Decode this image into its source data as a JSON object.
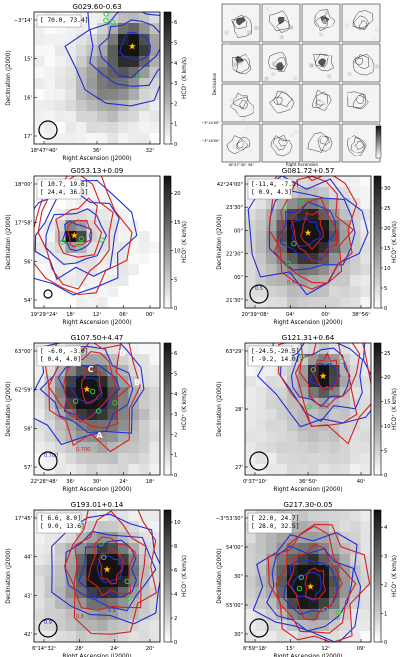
{
  "figure": {
    "x_axis_label": "Right Ascension (J2000)",
    "y_axis_label": "Declination (J2000)",
    "colorbar_label": "HCO⁺ (K km/s)",
    "inset_x_label": "Right Ascension",
    "inset_y_label": "Declination",
    "inset_y_ticks": [
      "−3°14'00\"",
      "−3°16'00\""
    ],
    "inset_x_ticks": "18ʰ47ᵐ40ˢ   36ˢ"
  },
  "chart_data": [
    {
      "type": "heatmap",
      "title": "G029.60-0.63",
      "legend_box": [
        "[ 70.0, 73.4]"
      ],
      "xticks": [
        "18ʰ47ᵐ40ˢ",
        "36ˢ",
        "32ˢ"
      ],
      "yticks": [
        "−3°14'",
        "15'",
        "16'",
        "17'"
      ],
      "colorbar_ticks": [
        0,
        1,
        2,
        3,
        4,
        5,
        6
      ],
      "colorbar_range": [
        0,
        6.5
      ],
      "contour_labels": [],
      "source_labels": []
    },
    {
      "type": "heatmap",
      "title": "G053.13+0.09",
      "legend_box": [
        "[ 10.7, 19.6]",
        "[ 24.4, 36.1]"
      ],
      "xticks": [
        "19ʰ29ᵐ24ˢ",
        "18ˢ",
        "12ˢ",
        "06ˢ",
        "00ˢ"
      ],
      "yticks": [
        "18°00'",
        "17°58'",
        "56'",
        "54'"
      ],
      "colorbar_ticks": [
        0,
        5,
        10,
        15,
        20
      ],
      "colorbar_range": [
        0,
        23
      ],
      "contour_labels": [],
      "source_labels": []
    },
    {
      "type": "heatmap",
      "title": "G081.72+0.57",
      "legend_box": [
        "[-11.4, -7.1]",
        "[ 0.9, 4.3]"
      ],
      "xticks": [
        "20ʰ39ᵐ08ˢ",
        "04ˢ",
        "00ˢ",
        "38ᵐ56ˢ"
      ],
      "yticks": [
        "42°24'00\"",
        "23'30\"",
        "00\"",
        "22'30\"",
        "00\"",
        "21'30\""
      ],
      "colorbar_ticks": [
        0,
        5,
        10,
        15,
        20,
        25,
        30
      ],
      "colorbar_range": [
        0,
        33
      ],
      "contour_labels": [
        "0.5",
        "0.5"
      ],
      "source_labels": []
    },
    {
      "type": "heatmap",
      "title": "G107.50+4.47",
      "legend_box": [
        "[ -6.0, -3.0]",
        "[ 0.4, 4.0]"
      ],
      "xticks": [
        "22ʰ28ᵐ48ˢ",
        "36ˢ",
        "30ˢ",
        "24ˢ",
        "18ˢ"
      ],
      "yticks": [
        "63°00'",
        "62°59'",
        "58'",
        "57'"
      ],
      "colorbar_ticks": [
        0,
        1,
        2,
        3,
        4,
        5,
        6
      ],
      "colorbar_range": [
        0,
        6.5
      ],
      "contour_labels": [
        "0.700",
        "0.700"
      ],
      "source_labels": [
        "A",
        "B",
        "C",
        "D"
      ]
    },
    {
      "type": "heatmap",
      "title": "G121.31+0.64",
      "legend_box": [
        "[-24.5,-20.5]",
        "[ -9.2, 14.0]"
      ],
      "xticks": [
        "0ʰ37ᵐ10ˢ",
        "36ᵐ50ˢ",
        "40ˢ"
      ],
      "yticks": [
        "63°29'",
        "28'",
        "27'"
      ],
      "colorbar_ticks": [
        0,
        5,
        10,
        15,
        20,
        25
      ],
      "colorbar_range": [
        0,
        27
      ],
      "contour_labels": [],
      "source_labels": []
    },
    {
      "type": "heatmap",
      "title": "G193.01+0.14",
      "legend_box": [
        "[ 6.6, 8.0]",
        "[ 9.0, 13.6]"
      ],
      "xticks": [
        "6ʰ14ᵐ32ˢ",
        "28ˢ",
        "24ˢ",
        "20ˢ"
      ],
      "yticks": [
        "17°45'",
        "44'",
        "43'",
        "42'"
      ],
      "colorbar_ticks": [
        0,
        2,
        4,
        6,
        8,
        10
      ],
      "colorbar_range": [
        0,
        11
      ],
      "contour_labels": [
        "0.9",
        "0.8",
        "0.5"
      ],
      "source_labels": []
    },
    {
      "type": "heatmap",
      "title": "G217.30-0.05",
      "legend_box": [
        "[ 22.0, 24.7]",
        "[ 28.0, 32.5]"
      ],
      "xticks": [
        "6ʰ59ᵐ18ˢ",
        "15ˢ",
        "12ˢ",
        "09ˢ"
      ],
      "yticks": [
        "−3°53'30\"",
        "54'00\"",
        "30\"",
        "55'00\"",
        "30\""
      ],
      "colorbar_ticks": [
        0,
        1,
        2,
        3,
        4
      ],
      "colorbar_range": [
        0,
        4.6
      ],
      "contour_labels": [],
      "source_labels": []
    }
  ]
}
